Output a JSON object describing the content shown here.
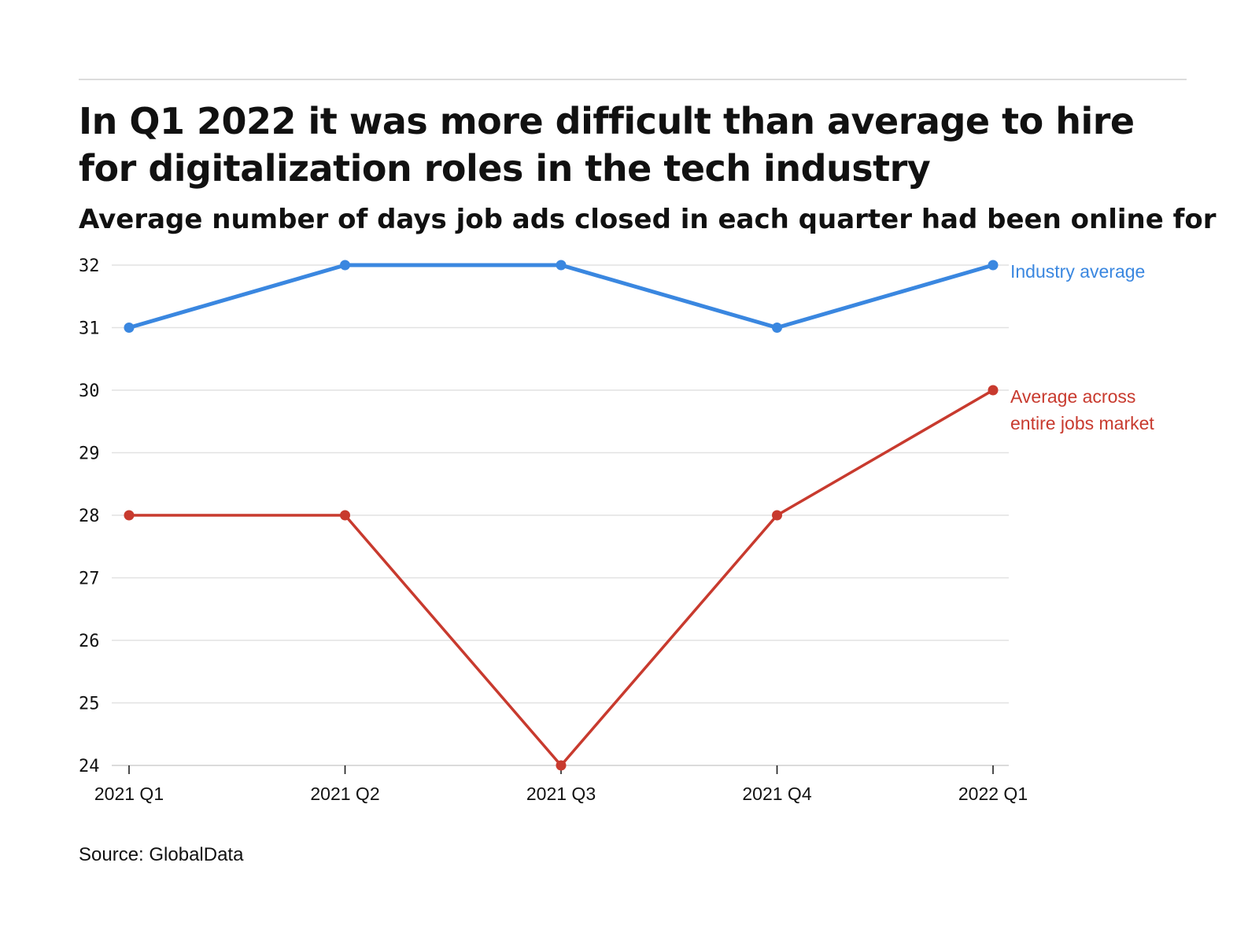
{
  "header": {
    "title": "In Q1 2022 it was more difficult than average to hire for digitalization roles in the tech industry",
    "subtitle": "Average number of days job ads closed in each quarter had been online for"
  },
  "footer": {
    "source": "Source: GlobalData"
  },
  "colors": {
    "industry": "#3a87e0",
    "market": "#c83a2e",
    "grid": "#e2e2e2",
    "axis": "#111111"
  },
  "chart_data": {
    "type": "line",
    "title": "In Q1 2022 it was more difficult than average to hire for digitalization roles in the tech industry",
    "subtitle": "Average number of days job ads closed in each quarter had been online for",
    "categories": [
      "2021 Q1",
      "2021 Q2",
      "2021 Q3",
      "2021 Q4",
      "2022 Q1"
    ],
    "yticks": [
      24,
      25,
      26,
      27,
      28,
      29,
      30,
      31,
      32
    ],
    "ylim": [
      24,
      32
    ],
    "grid": true,
    "series": [
      {
        "name": "Industry average",
        "label_lines": [
          "Industry average"
        ],
        "values": [
          31,
          32,
          32,
          31,
          32
        ],
        "color": "#3a87e0"
      },
      {
        "name": "Average across entire jobs market",
        "label_lines": [
          "Average across",
          "entire jobs market"
        ],
        "values": [
          28,
          28,
          24,
          28,
          30
        ],
        "color": "#c83a2e"
      }
    ],
    "source": "Source: GlobalData"
  }
}
